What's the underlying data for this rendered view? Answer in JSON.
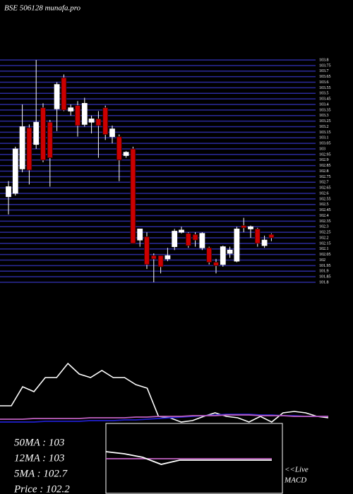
{
  "chart_data": [
    {
      "type": "candlestick",
      "title": "BSE 506128 munafa.pro",
      "open": [
        102.57,
        102.6,
        102.82,
        103.19,
        103.04,
        103.37,
        103.24,
        103.36,
        103.64,
        103.34,
        103.39,
        103.22,
        103.24,
        103.27,
        103.37,
        103.11,
        103.11,
        102.94,
        103.0,
        102.18,
        102.21,
        102.04,
        102.04,
        102.01,
        102.12,
        102.25,
        102.24,
        102.23,
        102.11,
        102.11,
        101.98,
        101.96,
        102.06,
        101.99,
        102.31,
        102.28,
        102.28,
        102.13,
        102.23
      ],
      "high": [
        102.71,
        103.02,
        103.4,
        103.22,
        103.8,
        103.41,
        103.26,
        103.6,
        103.67,
        103.4,
        103.43,
        103.46,
        103.3,
        103.34,
        103.39,
        103.21,
        103.13,
        102.98,
        103.02,
        102.28,
        102.25,
        102.06,
        102.04,
        102.11,
        102.28,
        102.3,
        102.25,
        102.25,
        102.25,
        102.12,
        102.01,
        102.13,
        102.12,
        102.3,
        102.38,
        102.31,
        102.29,
        102.22,
        102.24
      ],
      "low": [
        102.41,
        102.58,
        102.79,
        102.68,
        103.0,
        102.88,
        102.66,
        103.16,
        103.34,
        103.3,
        103.11,
        103.2,
        103.14,
        102.92,
        103.08,
        103.05,
        102.71,
        102.92,
        102.15,
        102.12,
        101.92,
        101.8,
        101.88,
        101.99,
        102.09,
        102.24,
        102.11,
        102.12,
        102.09,
        101.96,
        101.88,
        101.94,
        102.02,
        101.98,
        102.25,
        102.2,
        102.12,
        102.11,
        102.17
      ],
      "close": [
        102.66,
        103.0,
        103.2,
        102.81,
        103.24,
        102.9,
        102.92,
        103.58,
        103.35,
        103.37,
        103.21,
        103.41,
        103.27,
        103.21,
        103.13,
        103.18,
        102.9,
        102.97,
        102.15,
        102.28,
        101.96,
        102.01,
        101.94,
        102.04,
        102.26,
        102.27,
        102.13,
        102.18,
        102.24,
        101.98,
        101.95,
        102.12,
        102.09,
        102.28,
        102.29,
        102.3,
        102.15,
        102.18,
        102.2
      ],
      "up_color": "#ffffff",
      "down_color": "#cc0000",
      "grid": true,
      "grid_color": "#2b2b9c",
      "ylim": [
        101.8,
        103.8
      ],
      "yticks": [
        101.8,
        101.85,
        101.9,
        101.95,
        102,
        102.05,
        102.1,
        102.15,
        102.2,
        102.25,
        102.3,
        102.35,
        102.4,
        102.45,
        102.5,
        102.55,
        102.6,
        102.65,
        102.7,
        102.75,
        102.8,
        102.85,
        102.9,
        102.95,
        103,
        103.05,
        103.1,
        103.15,
        103.2,
        103.25,
        103.3,
        103.35,
        103.4,
        103.45,
        103.5,
        103.55,
        103.6,
        103.65,
        103.7,
        103.75,
        103.8
      ],
      "annotations": [
        "50MA : 103",
        "12MA : 103",
        "5MA : 102.7",
        "Price  : 102.2"
      ]
    },
    {
      "type": "line",
      "ylim": [
        0,
        100
      ],
      "series": [
        {
          "color": "#ffffff",
          "values": [
            25,
            25,
            52,
            45,
            65,
            65,
            85,
            70,
            65,
            75,
            65,
            65,
            55,
            50,
            10,
            8,
            2,
            4,
            10,
            15,
            10,
            8,
            2,
            10,
            2,
            15,
            17,
            15,
            10,
            8
          ]
        },
        {
          "color": "#2020d0",
          "values": [
            2,
            2,
            2,
            2,
            3,
            3,
            3,
            3,
            4,
            4,
            4,
            5,
            5,
            6,
            7,
            8,
            9,
            10,
            11,
            12,
            13,
            13,
            13,
            12,
            12,
            11,
            11,
            10,
            10,
            10
          ]
        },
        {
          "color": "#c060c0",
          "values": [
            6,
            6,
            6,
            7,
            7,
            7,
            7,
            7,
            8,
            8,
            8,
            8,
            9,
            9,
            10,
            10,
            10,
            11,
            11,
            11,
            12,
            12,
            12,
            11,
            11,
            11,
            10,
            10,
            10,
            10
          ]
        }
      ]
    },
    {
      "type": "line",
      "ylim": [
        0,
        100
      ],
      "series": [
        {
          "color": "#c060c0",
          "values": [
            50,
            50,
            50,
            50,
            50,
            50,
            50,
            50,
            50,
            50
          ]
        },
        {
          "color": "#ffffff",
          "values": [
            60,
            57,
            52,
            42,
            48,
            48,
            48,
            48,
            48,
            48
          ]
        }
      ],
      "annotations": [
        "<<Live",
        "MACD"
      ]
    }
  ]
}
